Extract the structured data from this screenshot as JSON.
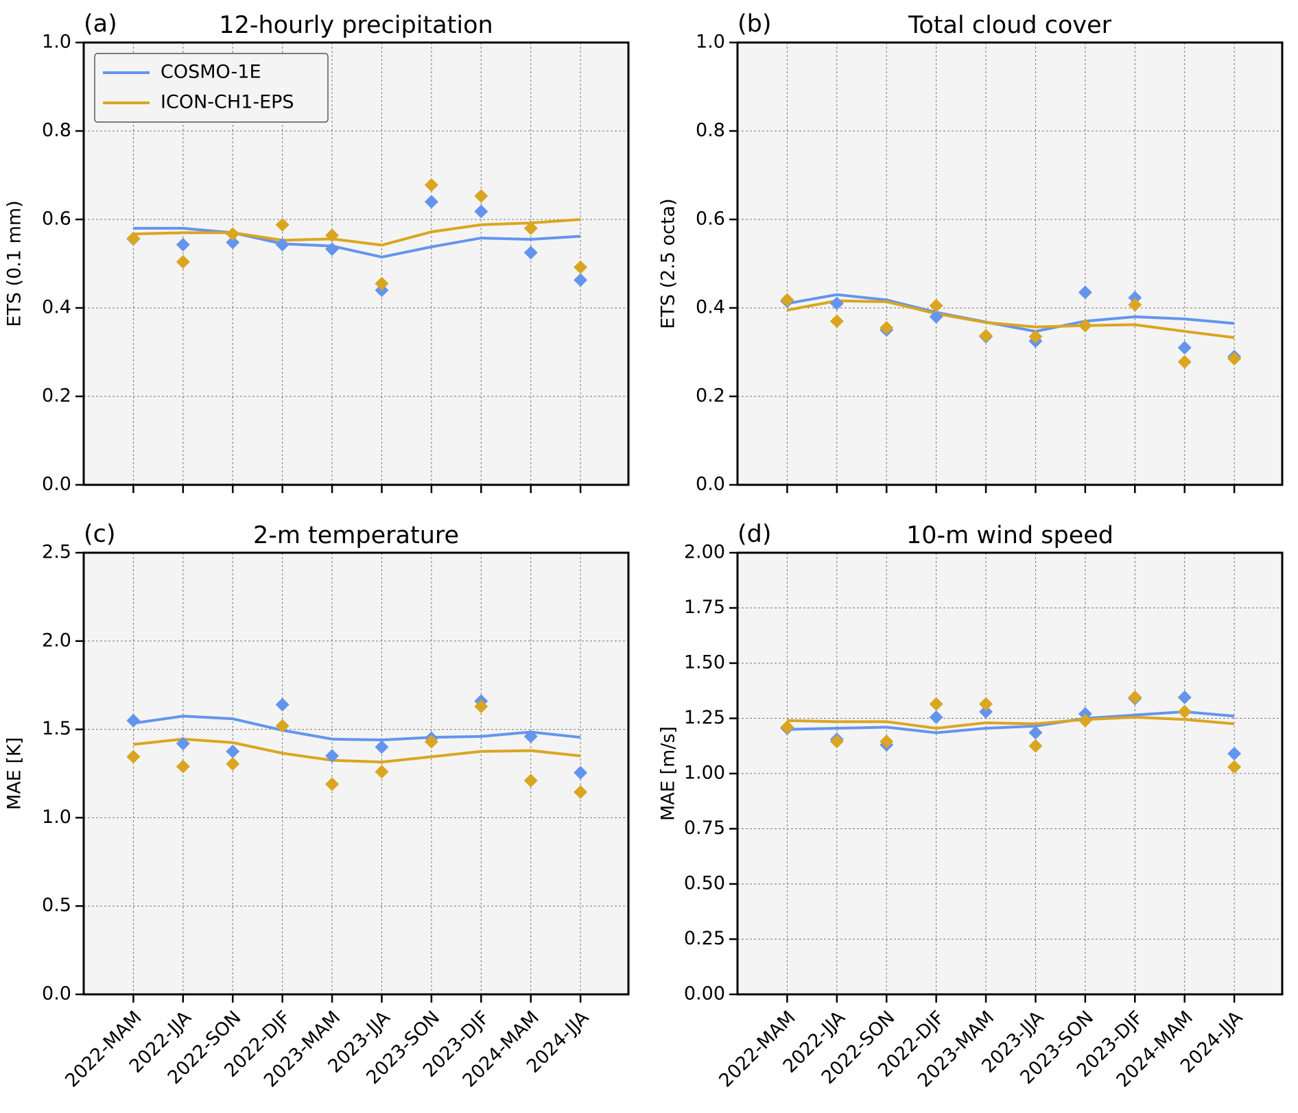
{
  "chart_data": [
    {
      "type": "line",
      "label": "(a)",
      "title": "12-hourly precipitation",
      "ylabel": "ETS (0.1 mm)",
      "categories": [
        null,
        null,
        null,
        null,
        null,
        null,
        null,
        null,
        null,
        null
      ],
      "ylim": [
        0,
        1
      ],
      "yticks": [
        {
          "value": 0,
          "label": "0.0"
        },
        0.2,
        0.4,
        0.6,
        0.8,
        {
          "value": 1,
          "label": "1.0"
        }
      ],
      "grid": true,
      "legend": "upper left",
      "series": [
        {
          "name": "COSMO-1E",
          "color": "#6495ed",
          "values": [
            0.58,
            0.58,
            0.57,
            0.545,
            0.54,
            0.515,
            0.538,
            0.558,
            0.555,
            0.562
          ],
          "points": [
            0.556,
            0.543,
            0.548,
            0.543,
            0.533,
            0.44,
            0.64,
            0.618,
            0.525,
            0.463
          ]
        },
        {
          "name": "ICON-CH1-EPS",
          "color": "#daa520",
          "values": [
            0.567,
            0.57,
            0.57,
            0.553,
            0.556,
            0.542,
            0.572,
            0.588,
            0.592,
            0.6
          ],
          "points": [
            0.557,
            0.504,
            0.567,
            0.588,
            0.564,
            0.455,
            0.678,
            0.653,
            0.58,
            0.492
          ]
        }
      ]
    },
    {
      "type": "line",
      "label": "(b)",
      "title": "Total cloud cover",
      "ylabel": "ETS (2.5 octa)",
      "categories": [
        null,
        null,
        null,
        null,
        null,
        null,
        null,
        null,
        null,
        null
      ],
      "ylim": [
        0,
        1
      ],
      "yticks": [
        {
          "value": 0,
          "label": "0.0"
        },
        0.2,
        0.4,
        0.6,
        0.8,
        {
          "value": 1,
          "label": "1.0"
        }
      ],
      "grid": true,
      "series": [
        {
          "color": "#6495ed",
          "values": [
            0.41,
            0.43,
            0.418,
            0.39,
            0.368,
            0.347,
            0.37,
            0.38,
            0.375,
            0.365
          ],
          "points": [
            0.415,
            0.41,
            0.35,
            0.38,
            0.335,
            0.325,
            0.435,
            0.423,
            0.31,
            0.29
          ]
        },
        {
          "color": "#daa520",
          "values": [
            0.395,
            0.416,
            0.414,
            0.387,
            0.367,
            0.357,
            0.36,
            0.362,
            0.347,
            0.333
          ],
          "points": [
            0.418,
            0.37,
            0.355,
            0.405,
            0.337,
            0.335,
            0.36,
            0.407,
            0.278,
            0.285
          ]
        }
      ]
    },
    {
      "type": "line",
      "label": "(c)",
      "title": "2-m temperature",
      "ylabel": "MAE [K]",
      "categories": [
        "2022-MAM",
        "2022-JJA",
        "2022-SON",
        "2022-DJF",
        "2023-MAM",
        "2023-JJA",
        "2023-SON",
        "2023-DJF",
        "2024-MAM",
        "2024-JJA"
      ],
      "ylim": [
        0,
        2.5
      ],
      "yticks": [
        {
          "value": 0,
          "label": "0.0"
        },
        0.5,
        {
          "value": 1,
          "label": "1.0"
        },
        1.5,
        {
          "value": 2,
          "label": "2.0"
        },
        2.5
      ],
      "grid": true,
      "series": [
        {
          "color": "#6495ed",
          "values": [
            1.535,
            1.575,
            1.56,
            1.495,
            1.445,
            1.44,
            1.455,
            1.46,
            1.485,
            1.455
          ],
          "points": [
            1.55,
            1.42,
            1.375,
            1.64,
            1.35,
            1.4,
            1.45,
            1.66,
            1.46,
            1.255
          ]
        },
        {
          "color": "#daa520",
          "values": [
            1.415,
            1.445,
            1.425,
            1.365,
            1.325,
            1.315,
            1.345,
            1.375,
            1.38,
            1.35
          ],
          "points": [
            1.345,
            1.29,
            1.305,
            1.52,
            1.19,
            1.26,
            1.43,
            1.63,
            1.21,
            1.145
          ]
        }
      ]
    },
    {
      "type": "line",
      "label": "(d)",
      "title": "10-m wind speed",
      "ylabel": "MAE [m/s]",
      "categories": [
        "2022-MAM",
        "2022-JJA",
        "2022-SON",
        "2022-DJF",
        "2023-MAM",
        "2023-JJA",
        "2023-SON",
        "2023-DJF",
        "2024-MAM",
        "2024-JJA"
      ],
      "ylim": [
        0,
        2
      ],
      "yticks": [
        {
          "value": 0,
          "label": "0.00"
        },
        0.25,
        {
          "value": 0.5,
          "label": "0.50"
        },
        0.75,
        {
          "value": 1,
          "label": "1.00"
        },
        1.25,
        {
          "value": 1.5,
          "label": "1.50"
        },
        1.75,
        {
          "value": 2,
          "label": "2.00"
        }
      ],
      "grid": true,
      "series": [
        {
          "color": "#6495ed",
          "values": [
            1.2,
            1.205,
            1.21,
            1.185,
            1.205,
            1.215,
            1.25,
            1.265,
            1.28,
            1.26
          ],
          "points": [
            1.205,
            1.155,
            1.13,
            1.255,
            1.28,
            1.185,
            1.27,
            1.34,
            1.345,
            1.09
          ]
        },
        {
          "color": "#daa520",
          "values": [
            1.24,
            1.235,
            1.235,
            1.205,
            1.23,
            1.225,
            1.245,
            1.255,
            1.245,
            1.225
          ],
          "points": [
            1.21,
            1.145,
            1.145,
            1.315,
            1.315,
            1.125,
            1.24,
            1.345,
            1.28,
            1.03
          ]
        }
      ]
    }
  ]
}
